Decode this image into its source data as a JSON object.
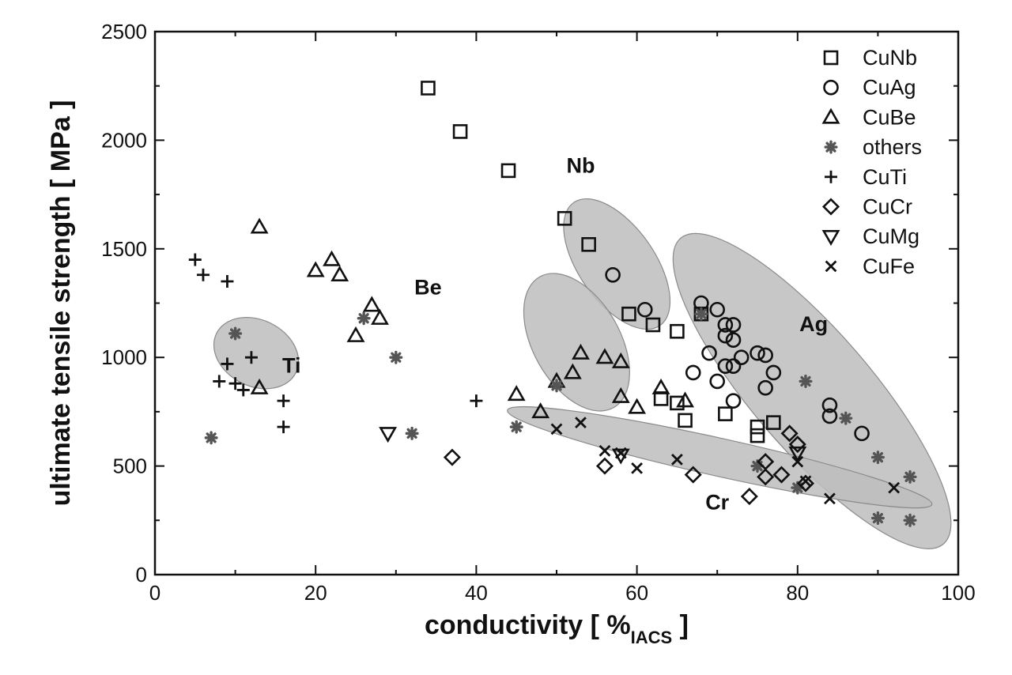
{
  "chart_data": {
    "type": "scatter",
    "title": "",
    "xlabel": {
      "main": "conductivity  [ %",
      "sub": "IACS",
      "close": " ]"
    },
    "ylabel": "ultimate tensile strength  [ MPa ]",
    "xlim": [
      0,
      100
    ],
    "ylim": [
      0,
      2500
    ],
    "x_ticks": [
      "0",
      "20",
      "40",
      "60",
      "80",
      "100"
    ],
    "y_ticks": [
      "0",
      "500",
      "1000",
      "1500",
      "2000",
      "2500"
    ],
    "legend_position": "top-right",
    "fill_color": "#bdbdbd",
    "marker_color": "#111111",
    "others_color": "#555555",
    "regions": [
      {
        "label": "Nb",
        "cx": 57.5,
        "cy": 1430,
        "rx": 48,
        "ry": 95,
        "angle_deg": -35.1,
        "label_at": [
          53,
          1850
        ]
      },
      {
        "label": "Be",
        "cx": 52.5,
        "cy": 1070,
        "rx": 55,
        "ry": 95,
        "angle_deg": -29.5,
        "label_at": [
          34,
          1290
        ]
      },
      {
        "label": "Ti",
        "cx": 12.6,
        "cy": 1020,
        "rx": 42,
        "ry": 56,
        "angle_deg": -63.5,
        "label_at": [
          17,
          930
        ]
      },
      {
        "label": "Ag",
        "cx": 81.8,
        "cy": 845,
        "rx": 255,
        "ry": 75,
        "angle_deg": 49.3,
        "label_at": [
          82,
          1120
        ]
      },
      {
        "label": "Cr",
        "cx": 70.3,
        "cy": 540,
        "rx": 275,
        "ry": 24,
        "angle_deg": 12.5,
        "label_at": [
          70,
          300
        ]
      }
    ],
    "series": [
      {
        "name": "CuNb",
        "marker": "square",
        "points": [
          [
            34,
            2240
          ],
          [
            38,
            2040
          ],
          [
            44,
            1860
          ],
          [
            51,
            1640
          ],
          [
            54,
            1520
          ],
          [
            59,
            1200
          ],
          [
            62,
            1150
          ],
          [
            65,
            1120
          ],
          [
            68,
            1200
          ],
          [
            63,
            810
          ],
          [
            65,
            790
          ],
          [
            66,
            710
          ],
          [
            71,
            740
          ],
          [
            75,
            640
          ],
          [
            75,
            680
          ],
          [
            77,
            700
          ]
        ]
      },
      {
        "name": "CuAg",
        "marker": "circle",
        "points": [
          [
            57,
            1380
          ],
          [
            61,
            1220
          ],
          [
            68,
            1250
          ],
          [
            70,
            1220
          ],
          [
            71,
            1150
          ],
          [
            72,
            1150
          ],
          [
            71,
            1100
          ],
          [
            72,
            1080
          ],
          [
            69,
            1020
          ],
          [
            73,
            1000
          ],
          [
            75,
            1020
          ],
          [
            76,
            1010
          ],
          [
            71,
            960
          ],
          [
            72,
            960
          ],
          [
            67,
            930
          ],
          [
            70,
            890
          ],
          [
            77,
            930
          ],
          [
            76,
            860
          ],
          [
            72,
            800
          ],
          [
            84,
            780
          ],
          [
            84,
            730
          ],
          [
            88,
            650
          ]
        ]
      },
      {
        "name": "CuBe",
        "marker": "triangle",
        "points": [
          [
            13,
            1600
          ],
          [
            20,
            1400
          ],
          [
            22,
            1450
          ],
          [
            23,
            1380
          ],
          [
            27,
            1240
          ],
          [
            28,
            1180
          ],
          [
            25,
            1100
          ],
          [
            13,
            860
          ],
          [
            45,
            830
          ],
          [
            48,
            750
          ],
          [
            50,
            890
          ],
          [
            52,
            930
          ],
          [
            53,
            1020
          ],
          [
            56,
            1000
          ],
          [
            58,
            980
          ],
          [
            58,
            820
          ],
          [
            60,
            770
          ],
          [
            63,
            860
          ],
          [
            66,
            800
          ]
        ]
      },
      {
        "name": "others",
        "marker": "star",
        "points": [
          [
            10,
            1110
          ],
          [
            26,
            1180
          ],
          [
            30,
            1000
          ],
          [
            7,
            630
          ],
          [
            32,
            650
          ],
          [
            45,
            680
          ],
          [
            50,
            870
          ],
          [
            68,
            1200
          ],
          [
            81,
            890
          ],
          [
            86,
            720
          ],
          [
            90,
            540
          ],
          [
            94,
            450
          ],
          [
            90,
            260
          ],
          [
            94,
            250
          ],
          [
            75,
            500
          ],
          [
            80,
            400
          ]
        ]
      },
      {
        "name": "CuTi",
        "marker": "plus",
        "points": [
          [
            5,
            1450
          ],
          [
            6,
            1380
          ],
          [
            9,
            1350
          ],
          [
            9,
            970
          ],
          [
            12,
            1000
          ],
          [
            8,
            890
          ],
          [
            10,
            880
          ],
          [
            11,
            850
          ],
          [
            16,
            800
          ],
          [
            16,
            680
          ],
          [
            40,
            800
          ]
        ]
      },
      {
        "name": "CuCr",
        "marker": "diamond",
        "points": [
          [
            37,
            540
          ],
          [
            56,
            500
          ],
          [
            67,
            460
          ],
          [
            74,
            360
          ],
          [
            76,
            450
          ],
          [
            78,
            460
          ],
          [
            76,
            520
          ],
          [
            79,
            650
          ],
          [
            80,
            600
          ],
          [
            81,
            420
          ]
        ]
      },
      {
        "name": "CuMg",
        "marker": "triangle-down",
        "points": [
          [
            29,
            650
          ],
          [
            58,
            550
          ],
          [
            80,
            560
          ]
        ]
      },
      {
        "name": "CuFe",
        "marker": "x",
        "points": [
          [
            50,
            670
          ],
          [
            53,
            700
          ],
          [
            56,
            570
          ],
          [
            58,
            560
          ],
          [
            60,
            490
          ],
          [
            65,
            530
          ],
          [
            80,
            520
          ],
          [
            81,
            430
          ],
          [
            84,
            350
          ],
          [
            92,
            400
          ]
        ]
      }
    ]
  }
}
